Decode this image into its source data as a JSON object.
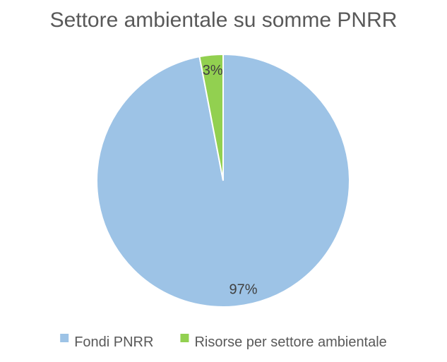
{
  "chart_data": {
    "type": "pie",
    "title": "Settore ambientale su somme PNRR",
    "categories": [
      "Fondi PNRR",
      "Risorse per settore ambientale"
    ],
    "values": [
      97,
      3
    ],
    "data_labels": [
      "97%",
      "3%"
    ],
    "colors": [
      "#9DC3E6",
      "#92D050"
    ],
    "legend": {
      "placement": "bottom",
      "entries": [
        "Fondi PNRR",
        "Risorse per settore ambientale"
      ]
    },
    "start_angle": "12 o'clock",
    "direction": "clockwise"
  }
}
